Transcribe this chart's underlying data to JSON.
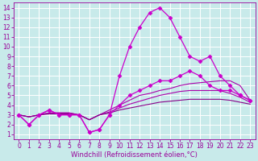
{
  "background_color": "#c8eaea",
  "grid_color": "#ffffff",
  "line_color": "#990099",
  "xlabel": "Windchill (Refroidissement éolien,°C)",
  "xlim": [
    -0.5,
    23.5
  ],
  "ylim": [
    0.5,
    14.5
  ],
  "xticks": [
    0,
    1,
    2,
    3,
    4,
    5,
    6,
    7,
    8,
    9,
    10,
    11,
    12,
    13,
    14,
    15,
    16,
    17,
    18,
    19,
    20,
    21,
    22,
    23
  ],
  "yticks": [
    1,
    2,
    3,
    4,
    5,
    6,
    7,
    8,
    9,
    10,
    11,
    12,
    13,
    14
  ],
  "series": [
    {
      "x": [
        0,
        1,
        2,
        3,
        4,
        5,
        6,
        7,
        8,
        9,
        10,
        11,
        12,
        13,
        14,
        15,
        16,
        17,
        18,
        19,
        20,
        21,
        22,
        23
      ],
      "y": [
        3,
        2,
        3,
        3.5,
        3,
        3,
        3,
        1.2,
        1.5,
        3,
        7,
        10,
        12,
        13.5,
        14,
        13,
        11,
        9,
        8.5,
        9,
        7,
        6,
        5,
        4.5
      ],
      "color": "#cc00cc",
      "linewidth": 0.9,
      "marker": "D",
      "markersize": 2.5,
      "linestyle": "-"
    },
    {
      "x": [
        0,
        1,
        2,
        3,
        4,
        5,
        6,
        7,
        8,
        9,
        10,
        11,
        12,
        13,
        14,
        15,
        16,
        17,
        18,
        19,
        20,
        21,
        22,
        23
      ],
      "y": [
        3,
        2,
        3,
        3.5,
        3,
        3,
        3,
        1.2,
        1.5,
        3,
        4,
        5,
        5.5,
        6,
        6.5,
        6.5,
        7,
        7.5,
        7,
        6,
        5.5,
        5.5,
        5,
        4.5
      ],
      "color": "#cc00cc",
      "linewidth": 0.9,
      "marker": "D",
      "markersize": 2.5,
      "linestyle": "-"
    },
    {
      "x": [
        0,
        1,
        2,
        3,
        4,
        5,
        6,
        7,
        8,
        9,
        10,
        11,
        12,
        13,
        14,
        15,
        16,
        17,
        18,
        19,
        20,
        21,
        22,
        23
      ],
      "y": [
        3,
        2.8,
        3,
        3.2,
        3.2,
        3.2,
        3,
        2.5,
        3,
        3.5,
        4,
        4.5,
        5,
        5.2,
        5.5,
        5.7,
        6,
        6.2,
        6.3,
        6.4,
        6.5,
        6.5,
        6,
        4.5
      ],
      "color": "#aa00aa",
      "linewidth": 0.8,
      "marker": null,
      "linestyle": "-"
    },
    {
      "x": [
        0,
        1,
        2,
        3,
        4,
        5,
        6,
        7,
        8,
        9,
        10,
        11,
        12,
        13,
        14,
        15,
        16,
        17,
        18,
        19,
        20,
        21,
        22,
        23
      ],
      "y": [
        3,
        2.8,
        3,
        3.2,
        3.2,
        3.2,
        3,
        2.5,
        3,
        3.3,
        3.7,
        4.1,
        4.4,
        4.7,
        5,
        5.2,
        5.4,
        5.5,
        5.5,
        5.5,
        5.5,
        5.2,
        4.8,
        4.3
      ],
      "color": "#aa00aa",
      "linewidth": 0.8,
      "marker": null,
      "linestyle": "-"
    },
    {
      "x": [
        0,
        1,
        2,
        3,
        4,
        5,
        6,
        7,
        8,
        9,
        10,
        11,
        12,
        13,
        14,
        15,
        16,
        17,
        18,
        19,
        20,
        21,
        22,
        23
      ],
      "y": [
        3,
        2.8,
        3,
        3.1,
        3.1,
        3.1,
        3,
        2.5,
        3,
        3.2,
        3.5,
        3.7,
        3.9,
        4.1,
        4.3,
        4.4,
        4.5,
        4.6,
        4.6,
        4.6,
        4.6,
        4.5,
        4.3,
        4.1
      ],
      "color": "#880088",
      "linewidth": 0.8,
      "marker": null,
      "linestyle": "-"
    }
  ],
  "tick_fontsize": 5.5,
  "label_fontsize": 6.0
}
